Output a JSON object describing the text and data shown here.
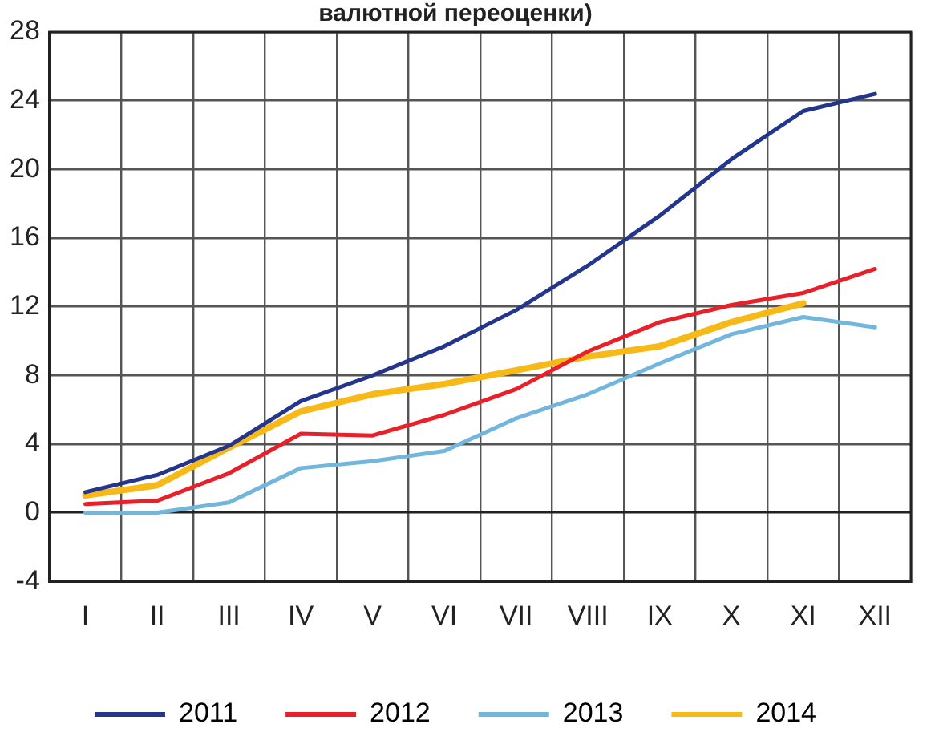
{
  "chart_data": {
    "type": "line",
    "title": "валютной переоценки)",
    "categories": [
      "I",
      "II",
      "III",
      "IV",
      "V",
      "VI",
      "VII",
      "VIII",
      "IX",
      "X",
      "XI",
      "XII"
    ],
    "series": [
      {
        "name": "2011",
        "color": "#23368c",
        "values": [
          1.2,
          2.2,
          3.9,
          6.5,
          8.0,
          9.7,
          11.8,
          14.4,
          17.3,
          20.6,
          23.4,
          24.4
        ]
      },
      {
        "name": "2012",
        "color": "#e8202a",
        "values": [
          0.5,
          0.7,
          2.3,
          4.6,
          4.5,
          5.7,
          7.2,
          9.4,
          11.1,
          12.1,
          12.8,
          14.2
        ]
      },
      {
        "name": "2013",
        "color": "#72b6de",
        "values": [
          0,
          0,
          0.6,
          2.6,
          3.0,
          3.6,
          5.5,
          6.9,
          8.7,
          10.4,
          11.4,
          10.8
        ]
      },
      {
        "name": "2014",
        "color": "#f6b918",
        "values": [
          1.0,
          1.6,
          3.8,
          5.9,
          6.9,
          7.5,
          8.3,
          9.1,
          9.7,
          11.1,
          12.2,
          null
        ]
      }
    ],
    "ylim": [
      -4,
      28
    ],
    "yticks": [
      -4,
      0,
      4,
      8,
      12,
      16,
      20,
      24,
      28
    ],
    "grid": true,
    "legend": "bottom",
    "marker": "none",
    "line_style": "solid"
  }
}
